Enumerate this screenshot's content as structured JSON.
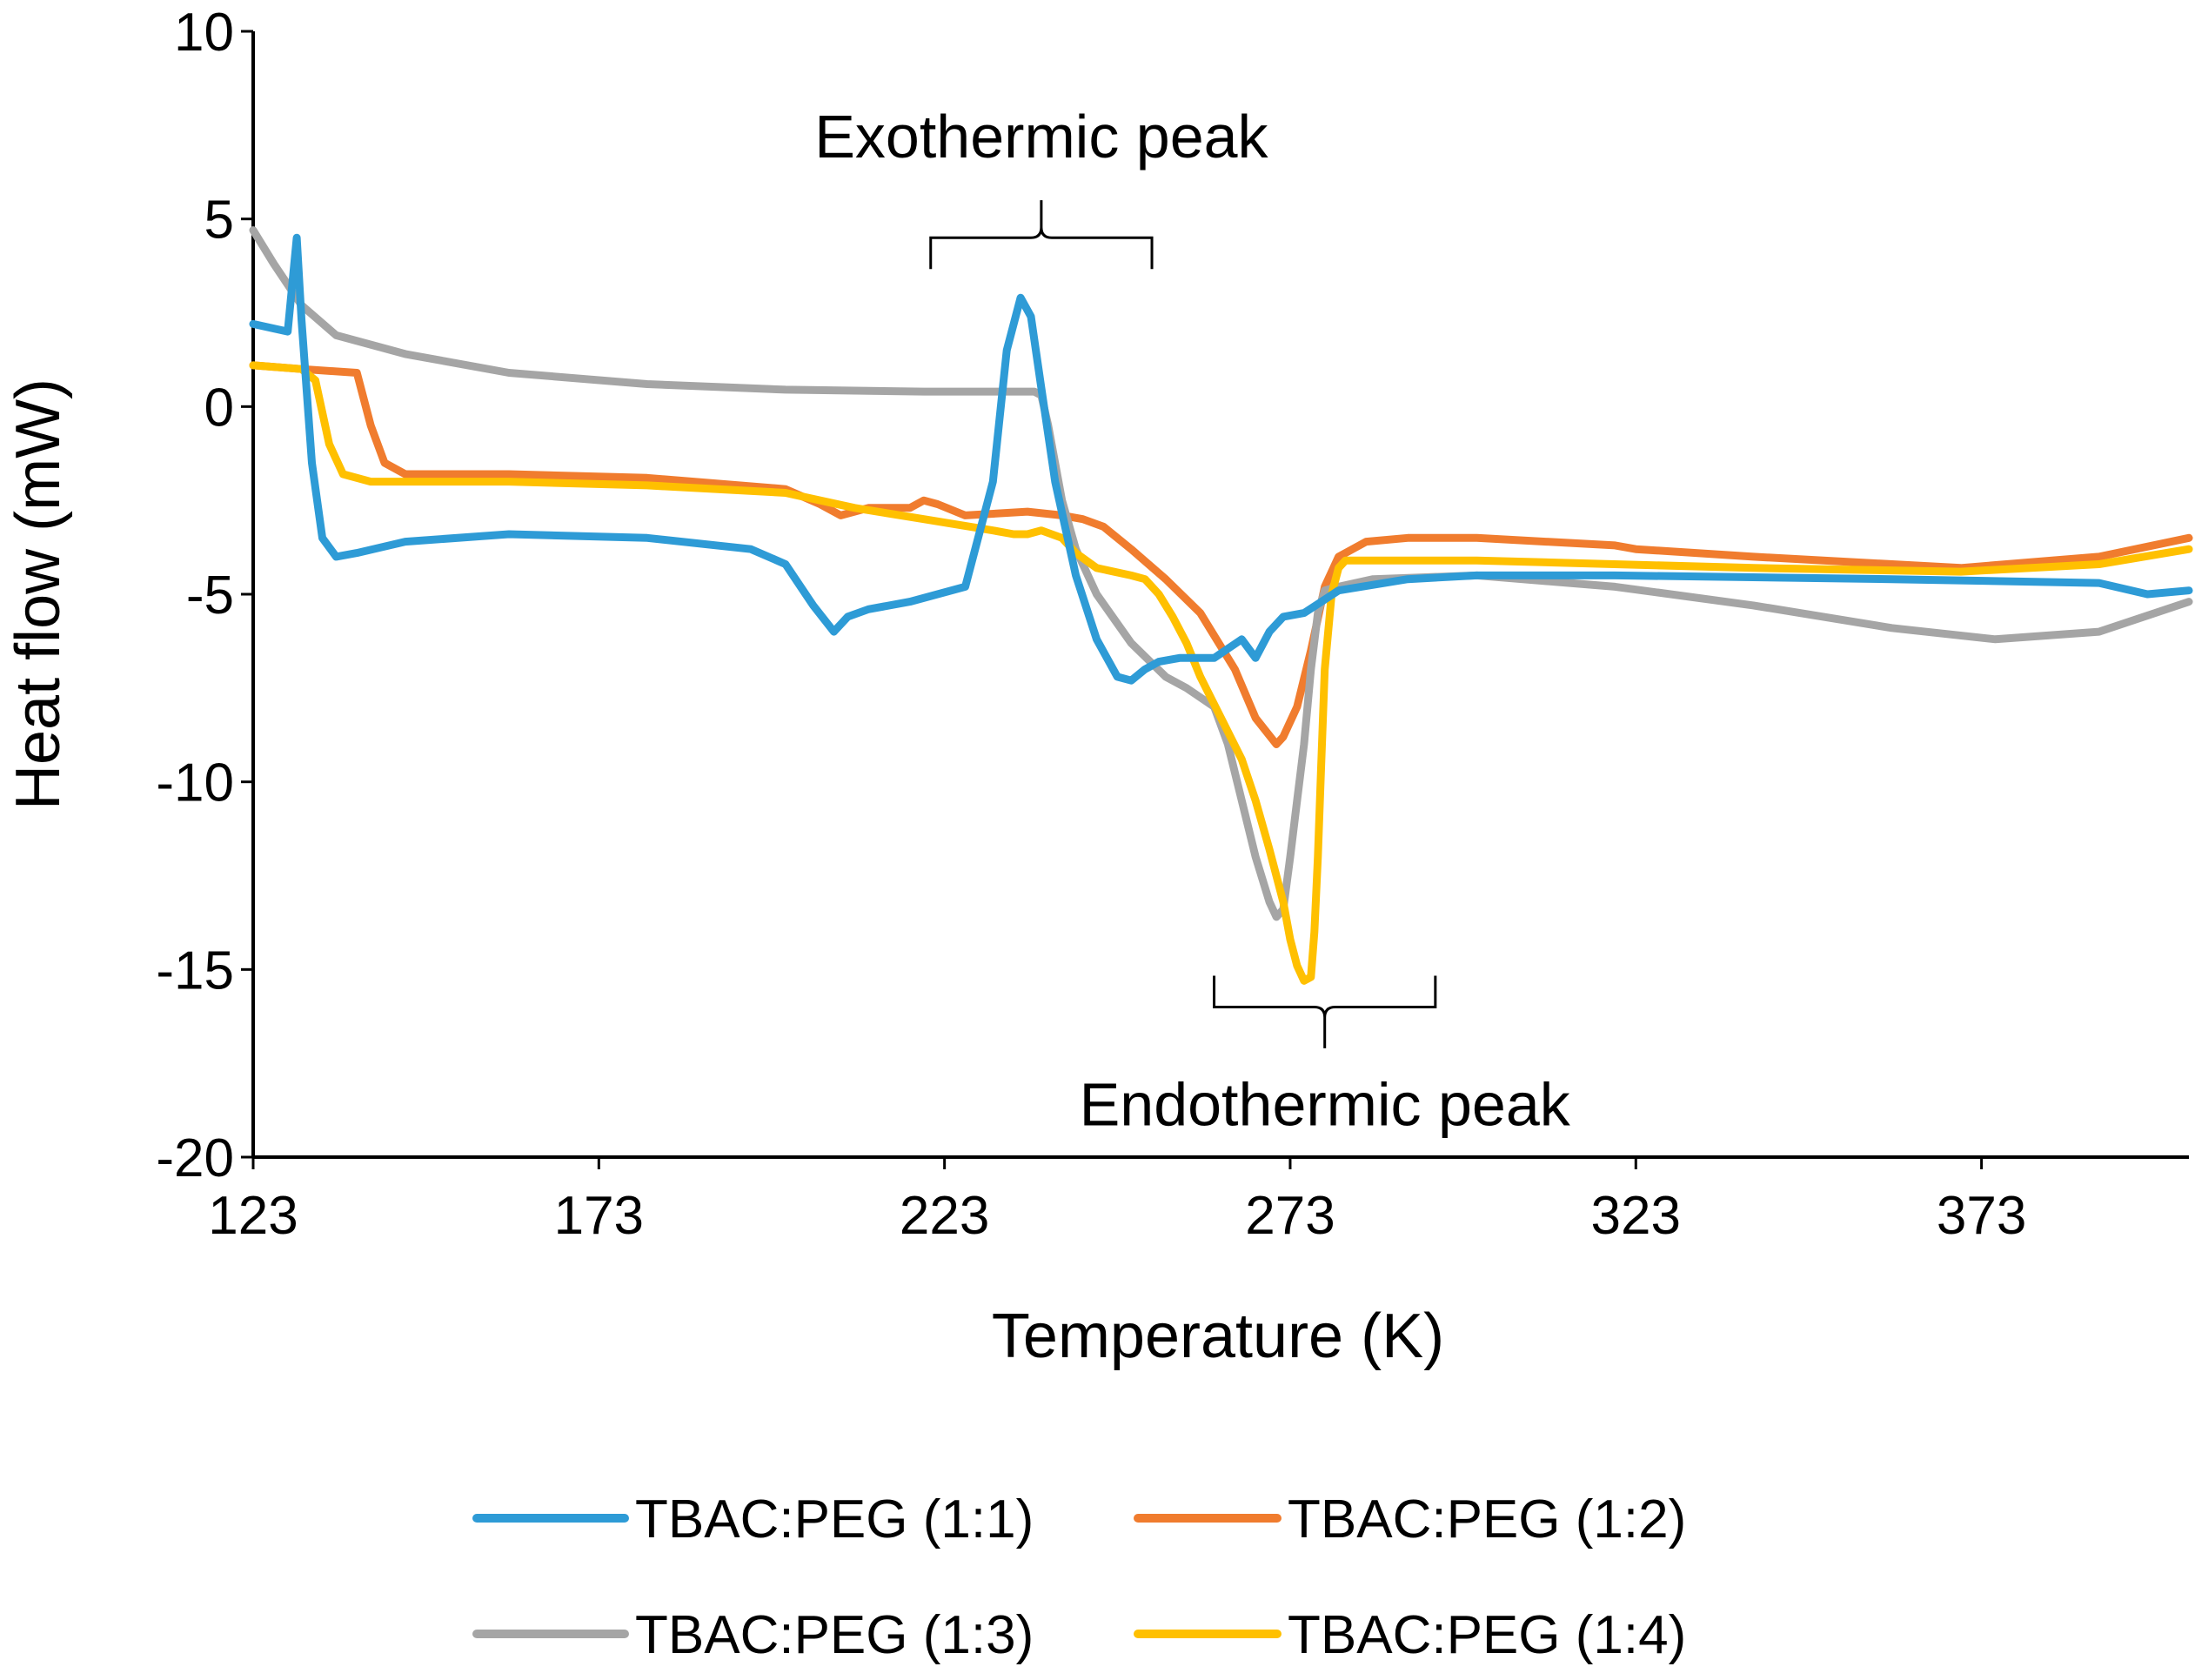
{
  "chart_data": {
    "type": "line",
    "title": "",
    "xlabel": "Temperature (K)",
    "ylabel": "Heat flow (mW)",
    "xlim": [
      123,
      403
    ],
    "ylim": [
      -20,
      10
    ],
    "xticks": [
      123,
      173,
      223,
      273,
      323,
      373
    ],
    "xtick_labels": [
      "123",
      "173",
      "223",
      "273",
      "323",
      "373"
    ],
    "yticks": [
      10,
      5,
      0,
      -5,
      -10,
      -15,
      -20
    ],
    "ytick_labels": [
      "10",
      "5",
      "0",
      "-5",
      "-10",
      "-15",
      "-20"
    ],
    "grid": false,
    "legend_position": "bottom",
    "annotations": [
      {
        "text": "Exothermic peak",
        "bracket_x": [
          221,
          253
        ],
        "bracket_y": 4.5,
        "stem_top_y": 5.5,
        "label_x": 237,
        "label_y": 7.2
      },
      {
        "text": "Endothermic peak",
        "bracket_x": [
          262,
          294
        ],
        "bracket_y": -16.0,
        "stem_bottom_y": -17.1,
        "label_x": 278,
        "label_y": -18.6
      }
    ],
    "series": [
      {
        "name": "TBAC:PEG (1:1)",
        "color": "#2E9BD6",
        "x": [
          123,
          128,
          129.3,
          130,
          131.5,
          133,
          135,
          138,
          145,
          160,
          180,
          195,
          200,
          204,
          207,
          209,
          212,
          218,
          226,
          230,
          232,
          234,
          235.5,
          237,
          239,
          242,
          245,
          248,
          250,
          252,
          254,
          257,
          262,
          266,
          268,
          270,
          272,
          275,
          280,
          290,
          300,
          320,
          360,
          390,
          397,
          403
        ],
        "y": [
          2.2,
          2.0,
          4.5,
          2.3,
          -1.5,
          -3.5,
          -4.0,
          -3.9,
          -3.6,
          -3.4,
          -3.5,
          -3.8,
          -4.2,
          -5.3,
          -6.0,
          -5.6,
          -5.4,
          -5.2,
          -4.8,
          -2.0,
          1.5,
          2.9,
          2.4,
          0.5,
          -2.0,
          -4.5,
          -6.2,
          -7.2,
          -7.3,
          -7.0,
          -6.8,
          -6.7,
          -6.7,
          -6.2,
          -6.7,
          -6.0,
          -5.6,
          -5.5,
          -4.9,
          -4.6,
          -4.5,
          -4.5,
          -4.6,
          -4.7,
          -5.0,
          -4.9
        ]
      },
      {
        "name": "TBAC:PEG (1:2)",
        "color": "#F07C2E",
        "x": [
          123,
          130,
          138,
          140,
          142,
          145,
          160,
          180,
          200,
          205,
          208,
          212,
          218,
          220,
          222,
          226,
          235,
          240,
          243,
          246,
          250,
          255,
          260,
          265,
          268,
          271,
          272,
          274,
          276,
          278,
          280,
          284,
          290,
          300,
          320,
          323,
          340,
          370,
          390,
          403
        ],
        "y": [
          1.1,
          1.0,
          0.9,
          -0.5,
          -1.5,
          -1.8,
          -1.8,
          -1.9,
          -2.2,
          -2.6,
          -2.9,
          -2.7,
          -2.7,
          -2.5,
          -2.6,
          -2.9,
          -2.8,
          -2.9,
          -3.0,
          -3.2,
          -3.8,
          -4.6,
          -5.5,
          -7.0,
          -8.3,
          -9.0,
          -8.8,
          -8.0,
          -6.5,
          -4.8,
          -4.0,
          -3.6,
          -3.5,
          -3.5,
          -3.7,
          -3.8,
          -4.0,
          -4.3,
          -4.0,
          -3.5
        ]
      },
      {
        "name": "TBAC:PEG (1:3)",
        "color": "#A5A5A5",
        "x": [
          123,
          126,
          130,
          135,
          145,
          160,
          180,
          200,
          220,
          236,
          237,
          238,
          240,
          242,
          245,
          250,
          255,
          258,
          262,
          264,
          266,
          268,
          270,
          271,
          272,
          273,
          274,
          275,
          276,
          277,
          278,
          280,
          285,
          300,
          320,
          340,
          360,
          375,
          390,
          403
        ],
        "y": [
          4.7,
          3.8,
          2.7,
          1.9,
          1.4,
          0.9,
          0.6,
          0.45,
          0.4,
          0.4,
          0.3,
          -0.5,
          -2.5,
          -3.8,
          -5.0,
          -6.3,
          -7.2,
          -7.5,
          -8.0,
          -9.0,
          -10.5,
          -12.0,
          -13.2,
          -13.6,
          -13.4,
          -12.0,
          -10.5,
          -9.0,
          -7.0,
          -5.5,
          -4.9,
          -4.8,
          -4.6,
          -4.5,
          -4.8,
          -5.3,
          -5.9,
          -6.2,
          -6.0,
          -5.2
        ]
      },
      {
        "name": "TBAC:PEG (1:4)",
        "color": "#FFC000",
        "x": [
          123,
          130,
          132,
          134,
          136,
          140,
          160,
          180,
          200,
          210,
          220,
          230,
          233,
          235,
          237,
          240,
          242,
          245,
          250,
          252,
          254,
          256,
          258,
          260,
          263,
          266,
          268,
          270,
          272,
          273,
          274,
          275,
          276,
          276.5,
          277,
          277.5,
          278,
          279,
          280,
          281,
          282,
          283,
          285,
          290,
          300,
          340,
          370,
          390,
          403
        ],
        "y": [
          1.1,
          1.0,
          0.7,
          -1.0,
          -1.8,
          -2.0,
          -2.0,
          -2.1,
          -2.3,
          -2.7,
          -3.0,
          -3.3,
          -3.4,
          -3.4,
          -3.3,
          -3.5,
          -3.9,
          -4.3,
          -4.5,
          -4.6,
          -5.0,
          -5.6,
          -6.3,
          -7.2,
          -8.3,
          -9.4,
          -10.5,
          -11.8,
          -13.2,
          -14.2,
          -14.9,
          -15.3,
          -15.2,
          -14.0,
          -12.0,
          -9.5,
          -7.0,
          -5.0,
          -4.3,
          -4.1,
          -4.1,
          -4.1,
          -4.1,
          -4.1,
          -4.1,
          -4.3,
          -4.4,
          -4.2,
          -3.8
        ]
      }
    ]
  }
}
